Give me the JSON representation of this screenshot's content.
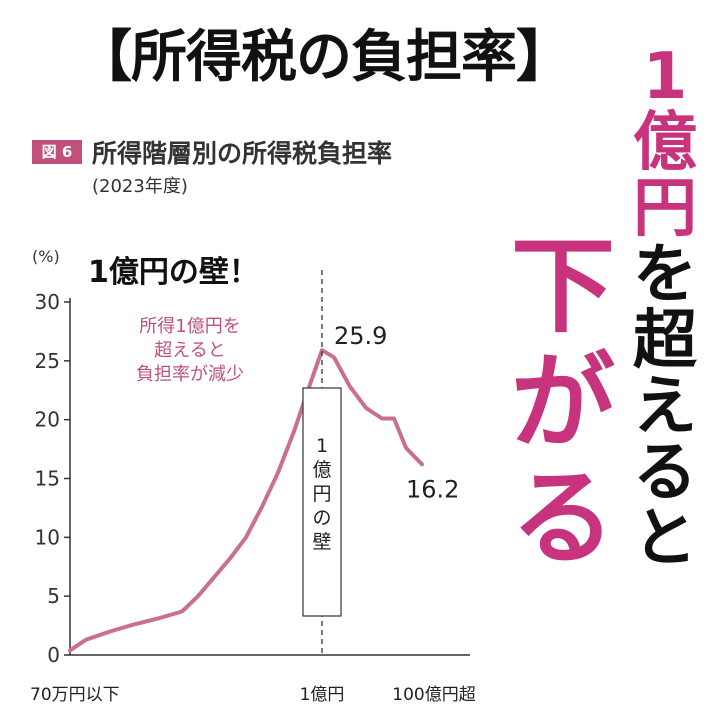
{
  "headline": "【所得税の負担率】",
  "figure": {
    "badge": "図 6",
    "title": "所得階層別の所得税負担率",
    "subtitle": "(2023年度)"
  },
  "side_caption": {
    "line1_pink": [
      "1",
      "億",
      "円"
    ],
    "line1_black": [
      "を",
      "超",
      "え",
      "る",
      "と"
    ],
    "line2_pink": [
      "下",
      "が",
      "る"
    ]
  },
  "colors": {
    "accent": "#c8337e",
    "line": "#c9708f",
    "label_pink": "#c0517e",
    "text": "#111111"
  },
  "chart_data": {
    "type": "line",
    "title": "所得階層別の所得税負担率",
    "subtitle": "(2023年度)",
    "ylabel": "(%)",
    "ylim": [
      0,
      30
    ],
    "yticks": [
      0,
      5,
      10,
      15,
      20,
      25,
      30
    ],
    "xlim": [
      0,
      100
    ],
    "xticks": [
      {
        "x": 0,
        "label": "70万円以下"
      },
      {
        "x": 63,
        "label": "1億円"
      },
      {
        "x": 91,
        "label": "100億円超"
      }
    ],
    "series": [
      {
        "x": [
          0,
          4,
          10,
          16,
          22,
          28,
          32,
          36,
          40,
          44,
          48,
          52,
          56,
          60,
          63,
          66,
          70,
          74,
          78,
          81,
          84,
          88
        ],
        "y": [
          0.4,
          1.3,
          2.0,
          2.6,
          3.1,
          3.7,
          5.0,
          6.6,
          8.2,
          10.0,
          12.6,
          15.5,
          19.0,
          23.0,
          25.9,
          25.3,
          22.8,
          21.0,
          20.1,
          20.1,
          17.6,
          16.2
        ]
      }
    ],
    "peak_label": "25.9",
    "end_label": "16.2",
    "reference_line": {
      "x": 63,
      "box_text": [
        "1",
        "億",
        "円",
        "の",
        "壁"
      ]
    },
    "annotation_title": "1億円の壁！",
    "annotation_note": [
      "所得1億円を",
      "超えると",
      "負担率が減少"
    ],
    "grid": false
  }
}
